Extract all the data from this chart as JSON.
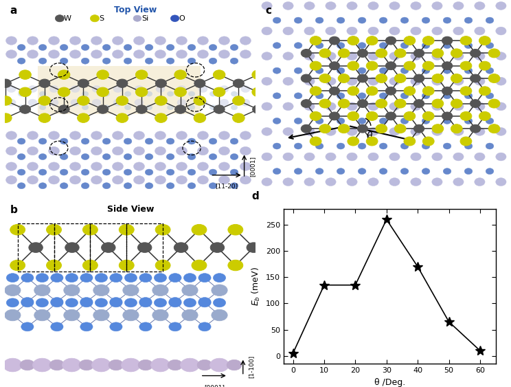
{
  "panel_d": {
    "x": [
      0,
      10,
      20,
      30,
      40,
      50,
      60
    ],
    "y": [
      5,
      135,
      135,
      260,
      170,
      65,
      10
    ],
    "xlabel": "θ /Deg.",
    "ylabel": "$E_b$ (meV)",
    "xlim": [
      -3,
      65
    ],
    "ylim": [
      -15,
      280
    ],
    "xticks": [
      0,
      10,
      20,
      30,
      40,
      50,
      60
    ],
    "yticks": [
      0,
      50,
      100,
      150,
      200,
      250
    ],
    "marker": "*",
    "markersize": 10,
    "linecolor": "black",
    "linewidth": 1.2
  },
  "colors": {
    "W": "#555555",
    "S": "#cccc00",
    "Si_purple": "#aaaacc",
    "Si_blue": "#99aacc",
    "O_blue": "#5588dd",
    "O_dark": "#3355bb",
    "bond": "#333333",
    "highlight": "#f5edd5",
    "title_blue": "#2255aa"
  },
  "title_a": "Top View",
  "title_b": "Side View",
  "background_color": "#ffffff"
}
